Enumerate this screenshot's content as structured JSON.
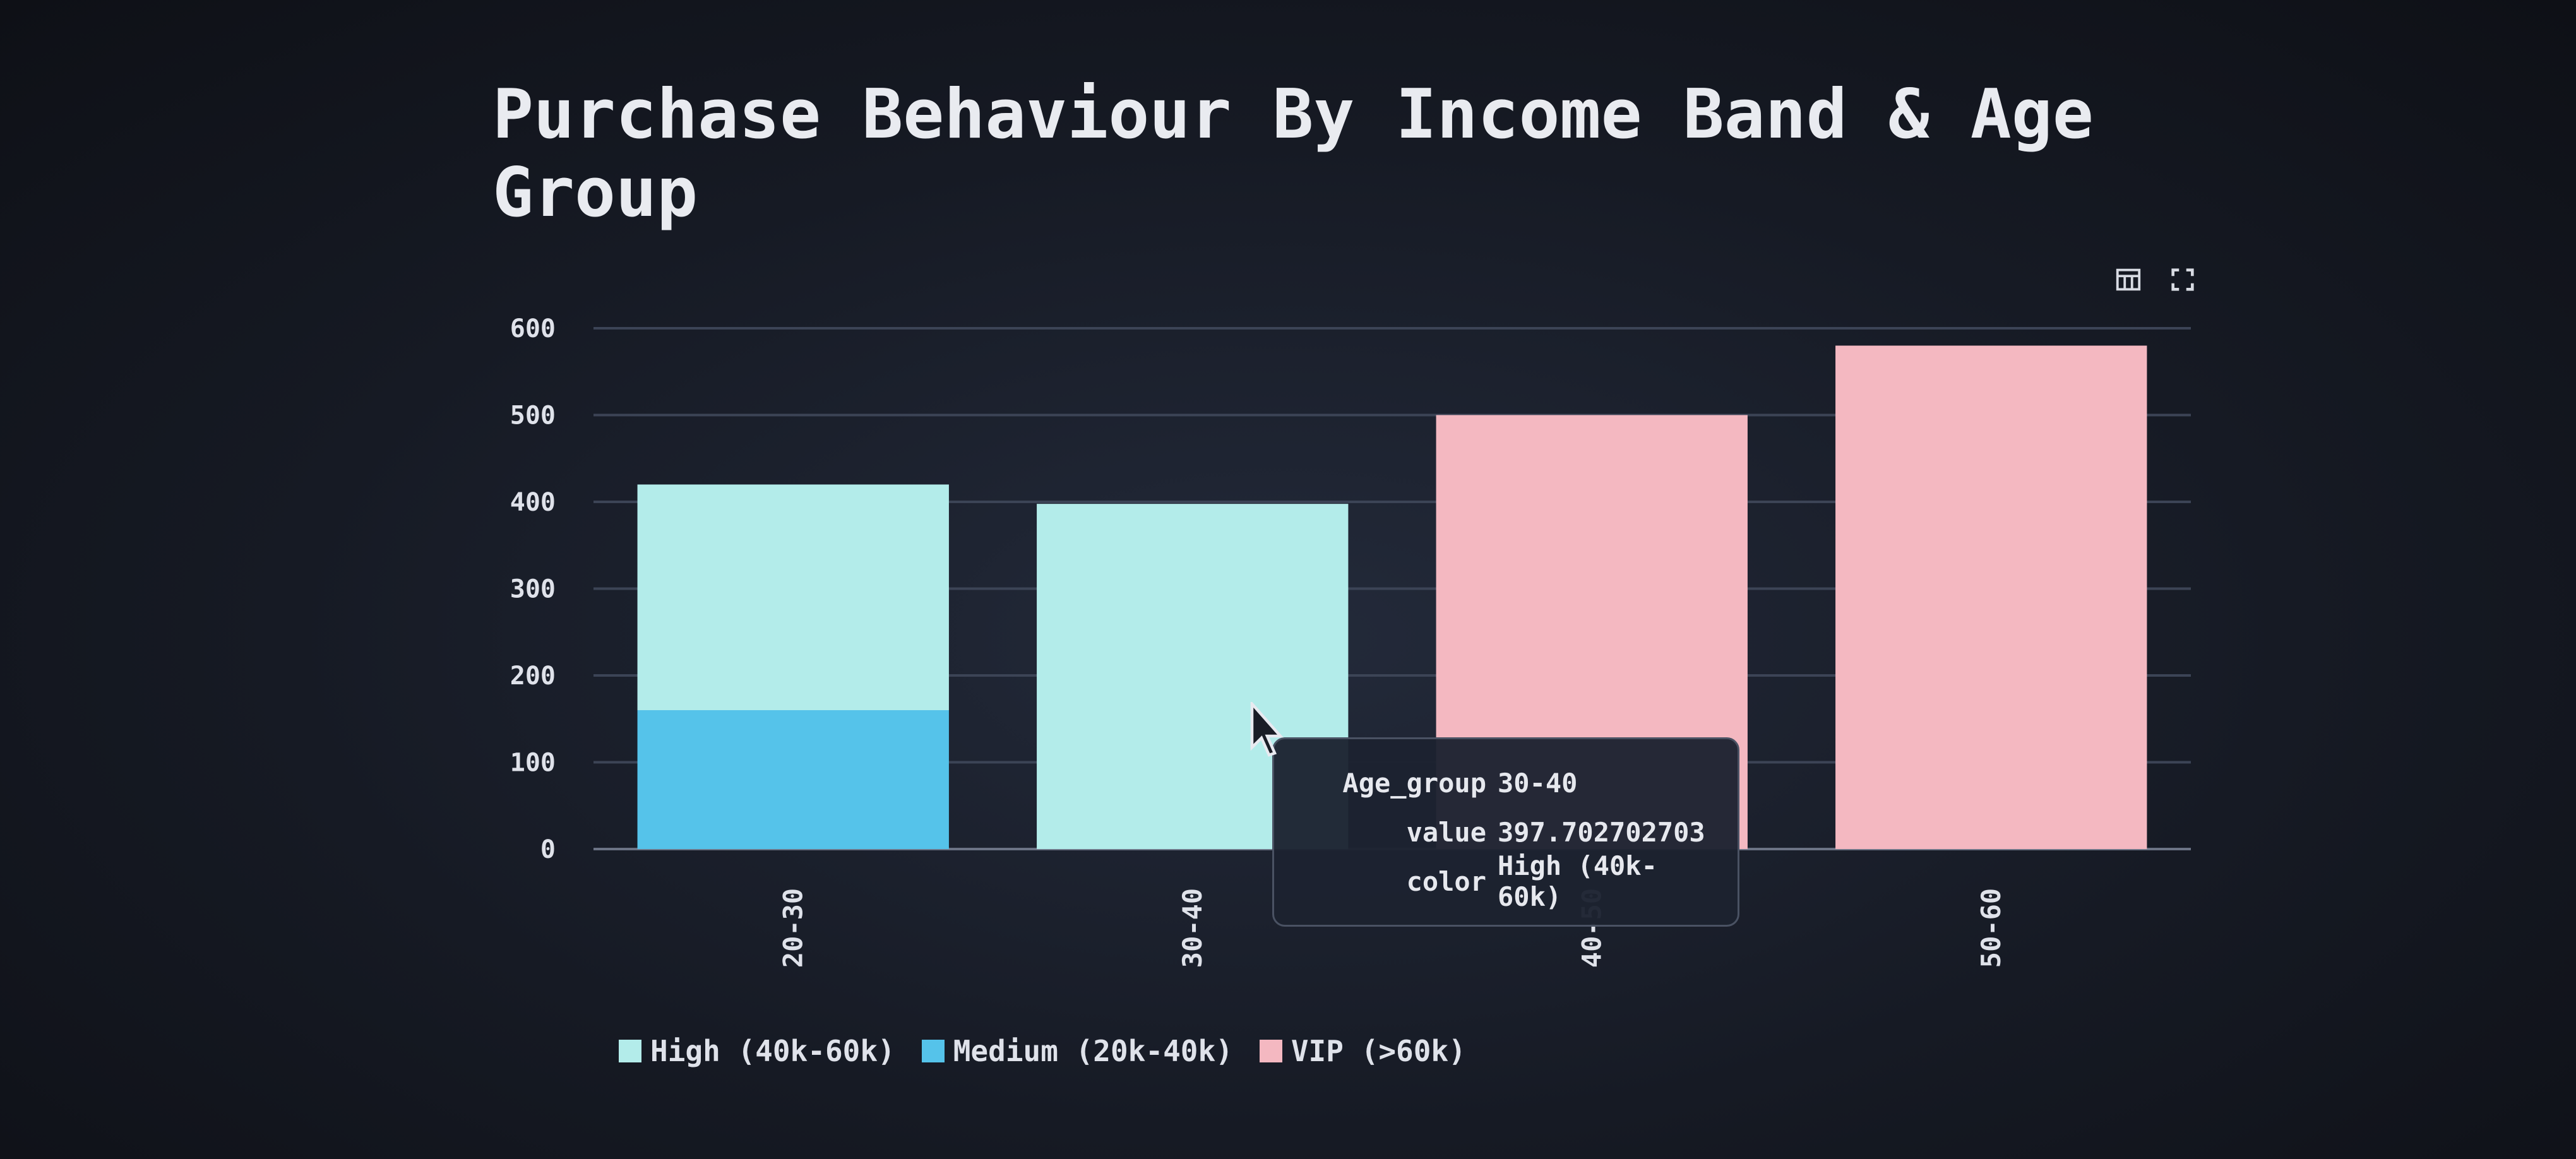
{
  "title": "Purchase Behaviour By Income Band & Age Group",
  "toolbar": {
    "icons": [
      "table-icon",
      "fullscreen-icon"
    ]
  },
  "chart_data": {
    "type": "bar",
    "stacked": true,
    "categories": [
      "20-30",
      "30-40",
      "40-50",
      "50-60"
    ],
    "series": [
      {
        "name": "High (40k-60k)",
        "color": "#b3ecea",
        "values": [
          260,
          397.702702703,
          0,
          0
        ]
      },
      {
        "name": "Medium (20k-40k)",
        "color": "#55c3ea",
        "values": [
          160,
          0,
          0,
          0
        ]
      },
      {
        "name": "VIP (>60k)",
        "color": "#f4b8c1",
        "values": [
          0,
          0,
          500,
          580
        ]
      }
    ],
    "ylim": [
      0,
      600
    ],
    "yticks": [
      "0",
      "100",
      "200",
      "300",
      "400",
      "500",
      "600"
    ],
    "grid": true,
    "legend_position": "bottom"
  },
  "tooltip": {
    "rows": [
      {
        "key": "Age_group",
        "value": "30-40"
      },
      {
        "key": "value",
        "value": "397.702702703"
      },
      {
        "key": "color",
        "value": "High (40k-60k)"
      }
    ]
  },
  "legend": [
    {
      "label": "High (40k-60k)",
      "color": "#b3ecea"
    },
    {
      "label": "Medium (20k-40k)",
      "color": "#55c3ea"
    },
    {
      "label": "VIP (>60k)",
      "color": "#f4b8c1"
    }
  ]
}
